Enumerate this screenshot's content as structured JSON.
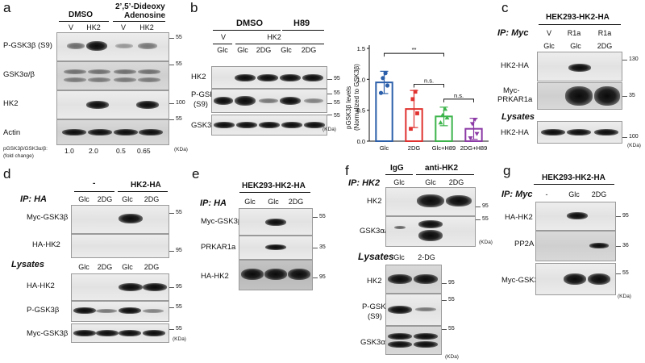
{
  "panels": {
    "a": {
      "label": "a",
      "treatments": [
        "DMSO",
        "2’,5’-Dideoxy",
        "Adenosine"
      ],
      "lanes": [
        "V",
        "HK2",
        "V",
        "HK2"
      ],
      "rows": [
        "P-GSK3β (S9)",
        "GSK3α/β",
        "HK2",
        "Actin"
      ],
      "markers": [
        "55",
        "55",
        "100",
        "55"
      ],
      "kda": "(KDa)",
      "ratio_label": "pGSK3β/GSK3α/β:",
      "ratio_sub": "(fold change)",
      "ratios": [
        "1.0",
        "2.0",
        "0.5",
        "0.65"
      ]
    },
    "b": {
      "label": "b",
      "treatments": [
        "DMSO",
        "H89"
      ],
      "v_label": "V",
      "hk2_label": "HK2",
      "lanes": [
        "Glc",
        "Glc",
        "2DG",
        "Glc",
        "2DG"
      ],
      "rows": [
        "HK2",
        "P-GSK3β",
        "(S9)",
        "GSK3β"
      ],
      "markers": [
        "95",
        "55",
        "55",
        "55"
      ],
      "kda": "(KDa)"
    },
    "chart": {
      "ylabel_1": "pGSK3β levels",
      "ylabel_2": "(Normalized to GSK3β)",
      "yticks": [
        "0.0",
        "0.5",
        "1.0",
        "1.5"
      ],
      "sig_1": "**",
      "sig_2": "n.s.",
      "sig_3": "n.s."
    },
    "c": {
      "label": "c",
      "cell_line": "HEK293-HK2-HA",
      "ip": "IP: Myc",
      "lanes_top": [
        "V",
        "R1a",
        "R1a"
      ],
      "lanes": [
        "Glc",
        "Glc",
        "2DG"
      ],
      "rows": [
        "HK2-HA",
        "Myc-",
        "PRKAR1a",
        "HK2-HA"
      ],
      "lysates": "Lysates",
      "markers": [
        "130",
        "35",
        "100"
      ],
      "kda": "(KDa)"
    },
    "d": {
      "label": "d",
      "dash": "-",
      "construct": "HK2-HA",
      "ip": "IP: HA",
      "lanes": [
        "Glc",
        "2DG",
        "Glc",
        "2DG"
      ],
      "lanes_lys": [
        "Glc",
        "2DG",
        "Glc",
        "2DG"
      ],
      "rows": [
        "Myc-GSK3β",
        "HA-HK2",
        "HA-HK2",
        "P-GSK3β",
        "Myc-GSK3β"
      ],
      "lysates": "Lysates",
      "markers": [
        "55",
        "95",
        "95",
        "55",
        "55"
      ],
      "kda": "(KDa)"
    },
    "e": {
      "label": "e",
      "cell_line": "HEK293-HK2-HA",
      "ip": "IP: HA",
      "lanes": [
        "Glc",
        "Glc",
        "2DG"
      ],
      "rows": [
        "Myc-GSK3β",
        "PRKAR1a",
        "HA-HK2"
      ],
      "markers": [
        "55",
        "35",
        "95"
      ]
    },
    "f": {
      "label": "f",
      "ip": "IP: HK2",
      "groups": [
        "IgG",
        "anti-HK2"
      ],
      "lanes": [
        "Glc",
        "Glc",
        "2DG"
      ],
      "rows": [
        "HK2",
        "GSK3α/β"
      ],
      "lysates": "Lysates",
      "lanes_lys": [
        "Glc",
        "2-DG"
      ],
      "rows_lys": [
        "HK2",
        "P-GSK3β",
        "(S9)",
        "GSK3α/β"
      ],
      "markers": [
        "95",
        "55",
        "95",
        "55",
        "55"
      ],
      "kda": "(KDa)"
    },
    "g": {
      "label": "g",
      "cell_line": "HEK293-HK2-HA",
      "ip": "IP: Myc",
      "lanes": [
        "-",
        "Glc",
        "2DG"
      ],
      "rows": [
        "HA-HK2",
        "PP2A",
        "Myc-GSK3β"
      ],
      "markers": [
        "95",
        "36",
        "55"
      ],
      "kda": "(KDa)"
    }
  },
  "chart_data": {
    "type": "bar",
    "categories": [
      "Glc",
      "2DG",
      "Glc+H89",
      "2DG+H89"
    ],
    "values": [
      0.95,
      0.52,
      0.4,
      0.2
    ],
    "errors": [
      0.18,
      0.3,
      0.15,
      0.17
    ],
    "points": [
      [
        0.78,
        0.9,
        1.02,
        1.1
      ],
      [
        0.2,
        0.45,
        0.68,
        0.8
      ],
      [
        0.3,
        0.38,
        0.42,
        0.52
      ],
      [
        0.05,
        0.12,
        0.28,
        0.35
      ]
    ],
    "colors": [
      "#2b5faa",
      "#e0312e",
      "#3cb44b",
      "#8c3aa6"
    ],
    "ylabel": "pGSK3β levels (Normalized to GSK3β)",
    "ylim": [
      0,
      1.5
    ],
    "yticks": [
      0.0,
      0.5,
      1.0,
      1.5
    ],
    "grid": false,
    "significance": [
      {
        "from": "Glc",
        "to": "Glc+H89",
        "label": "**"
      },
      {
        "from": "2DG",
        "to": "Glc+H89",
        "label": "n.s."
      },
      {
        "from": "Glc+H89",
        "to": "2DG+H89",
        "label": "n.s."
      }
    ]
  }
}
